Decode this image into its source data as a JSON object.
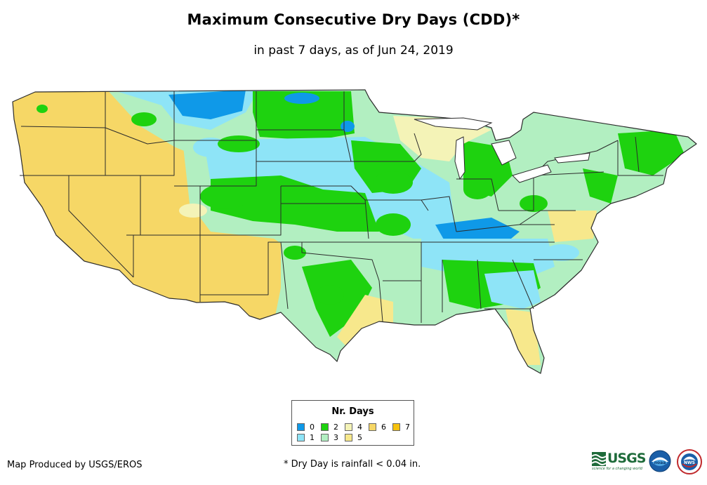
{
  "title": "Maximum Consecutive Dry Days (CDD)*",
  "subtitle": "in past 7 days, as of Jun 24, 2019",
  "legend": {
    "title": "Nr. Days",
    "items": [
      {
        "label": "0",
        "color": "#0f99e8"
      },
      {
        "label": "1",
        "color": "#8ee4f7"
      },
      {
        "label": "2",
        "color": "#1ed20f"
      },
      {
        "label": "3",
        "color": "#b2efc1"
      },
      {
        "label": "4",
        "color": "#f4f3b7"
      },
      {
        "label": "5",
        "color": "#f7e88c"
      },
      {
        "label": "6",
        "color": "#f6d766"
      },
      {
        "label": "7",
        "color": "#f6c20e"
      }
    ]
  },
  "credit": "Map Produced by USGS/EROS",
  "footnote": "* Dry Day is rainfall < 0.04 in.",
  "logos": {
    "usgs": "USGS",
    "usgs_tagline": "science for a changing world",
    "noaa": "noaa",
    "nws": "NWS"
  },
  "colors": {
    "background": "#ffffff",
    "state_border": "#2b2b2b",
    "usgs_green": "#1e6b3a",
    "noaa_blue": "#1a5fa8"
  }
}
